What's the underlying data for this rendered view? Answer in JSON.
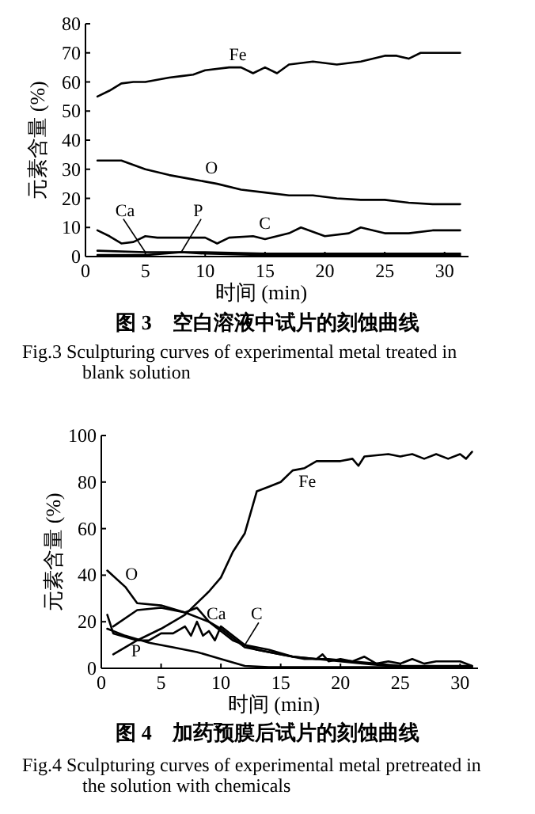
{
  "chart_data": [
    {
      "type": "line",
      "title": "图 3　空白溶液中试片的刻蚀曲线",
      "xlabel": "时间 (min)",
      "ylabel": "元素含量 (%)",
      "xlim": [
        0,
        32
      ],
      "ylim": [
        0,
        80
      ],
      "xticks": [
        0,
        5,
        10,
        15,
        20,
        25,
        30
      ],
      "yticks": [
        0,
        10,
        20,
        30,
        40,
        50,
        60,
        70,
        80
      ],
      "annotations": [
        "Fig.3 Sculpturing curves of experimental metal treated in blank solution"
      ],
      "series": [
        {
          "name": "Fe",
          "color": "#000000",
          "x": [
            1,
            2,
            3,
            4,
            5,
            7,
            8,
            9,
            10,
            12,
            13,
            14,
            15,
            16,
            17,
            19,
            21,
            23,
            25,
            26,
            27,
            28,
            31.3
          ],
          "values": [
            55,
            57,
            59.5,
            60,
            60,
            61.5,
            62,
            62.5,
            64,
            65,
            65,
            63,
            65,
            63,
            66,
            67,
            66,
            67,
            69,
            69,
            68,
            70,
            70
          ]
        },
        {
          "name": "O",
          "color": "#000000",
          "x": [
            1,
            3,
            5,
            7,
            9,
            11,
            13,
            15,
            17,
            19,
            21,
            23,
            25,
            27,
            29,
            31.3
          ],
          "values": [
            33,
            33,
            30,
            28,
            26.5,
            25,
            23,
            22,
            21,
            21,
            20,
            19.5,
            19.5,
            18.5,
            18,
            18
          ]
        },
        {
          "name": "C",
          "color": "#000000",
          "x": [
            1,
            2,
            3,
            4,
            5,
            6,
            8,
            10,
            11,
            12,
            14,
            15,
            17,
            18,
            20,
            22,
            23,
            25,
            27,
            29,
            31.3
          ],
          "values": [
            9,
            7,
            4.5,
            5,
            7,
            6.5,
            6.5,
            6.5,
            4.5,
            6.5,
            7,
            6,
            8,
            10,
            7,
            8,
            10,
            8,
            8,
            9,
            9
          ]
        },
        {
          "name": "Ca",
          "color": "#000000",
          "x": [
            1,
            5,
            10,
            15,
            20,
            25,
            31.3
          ],
          "values": [
            2,
            1.5,
            1.5,
            1,
            1,
            1,
            1
          ]
        },
        {
          "name": "P",
          "color": "#000000",
          "x": [
            1,
            3,
            5,
            8,
            10,
            15,
            20,
            31.3
          ],
          "values": [
            0.5,
            0.5,
            0.5,
            1.5,
            1,
            0.5,
            0.5,
            0.5
          ]
        }
      ]
    },
    {
      "type": "line",
      "title": "图 4　加药预膜后试片的刻蚀曲线",
      "xlabel": "时间 (min)",
      "ylabel": "元素含量 (%)",
      "xlim": [
        0,
        31.5
      ],
      "ylim": [
        0,
        100
      ],
      "xticks": [
        0,
        5,
        10,
        15,
        20,
        25,
        30
      ],
      "yticks": [
        0,
        20,
        40,
        60,
        80,
        100
      ],
      "annotations": [
        "Fig.4 Sculpturing curves of experimental metal pretreated in the solution with chemicals"
      ],
      "series": [
        {
          "name": "Fe",
          "color": "#000000",
          "x": [
            1,
            3,
            5,
            7,
            8,
            9,
            10,
            11,
            12,
            13,
            14,
            15,
            16,
            17,
            18,
            20,
            21,
            21.5,
            22,
            24,
            25,
            26,
            27,
            28,
            29,
            30,
            30.5,
            31
          ],
          "values": [
            6,
            12,
            17,
            23,
            28,
            33,
            39,
            50,
            58,
            76,
            78,
            80,
            85,
            86,
            89,
            89,
            90,
            87,
            91,
            92,
            91,
            92,
            90,
            92,
            90,
            92,
            90,
            93
          ]
        },
        {
          "name": "O",
          "color": "#000000",
          "x": [
            0.5,
            2,
            3,
            5,
            7,
            9,
            11,
            13,
            15,
            17,
            19,
            21,
            23,
            25,
            27,
            29,
            31
          ],
          "values": [
            42,
            35,
            28,
            27,
            24,
            20,
            12,
            8,
            6,
            4,
            4,
            3,
            2,
            1,
            1,
            1,
            1
          ]
        },
        {
          "name": "Ca",
          "color": "#000000",
          "x": [
            1,
            3,
            5,
            7,
            8,
            9,
            10,
            12,
            14,
            16,
            18,
            20,
            22,
            24,
            26,
            31
          ],
          "values": [
            18,
            25,
            26,
            24,
            26,
            20,
            17,
            9,
            7,
            5,
            4,
            3,
            2,
            1,
            0.5,
            0.5
          ]
        },
        {
          "name": "C",
          "color": "#000000",
          "x": [
            0.5,
            1,
            3,
            4,
            5,
            6,
            7,
            7.5,
            8,
            8.5,
            9,
            9.5,
            10,
            11,
            12,
            14,
            16,
            18,
            18.5,
            19,
            20,
            21,
            22,
            23,
            24,
            25,
            26,
            27,
            28,
            30,
            31
          ],
          "values": [
            23,
            15,
            12,
            12,
            15,
            15,
            18,
            14,
            20,
            14,
            16,
            12,
            18,
            14,
            10,
            8,
            5,
            4,
            6,
            3,
            4,
            3,
            5,
            2,
            3,
            2,
            4,
            2,
            3,
            3,
            1
          ]
        },
        {
          "name": "P",
          "color": "#000000",
          "x": [
            0.5,
            2,
            4,
            6,
            8,
            10,
            12,
            14,
            20,
            31
          ],
          "values": [
            17,
            14,
            11,
            9,
            7,
            4,
            1,
            0.5,
            0.5,
            0.5
          ]
        }
      ]
    }
  ]
}
